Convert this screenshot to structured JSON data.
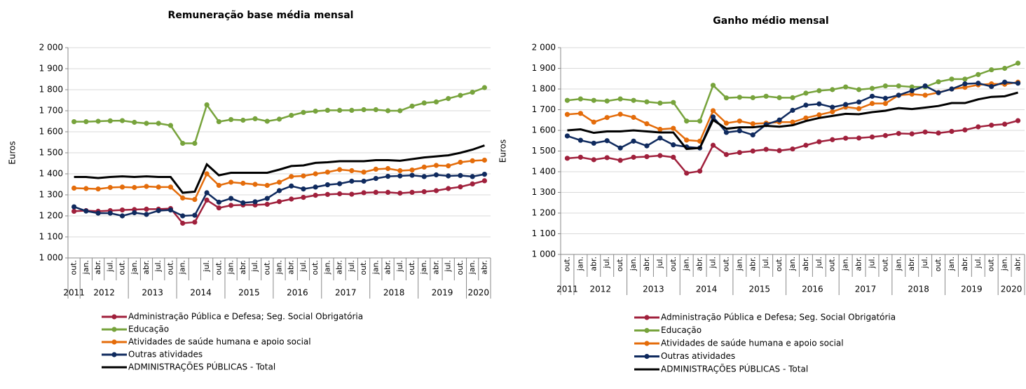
{
  "chart_data": [
    {
      "type": "line",
      "title": "Remuneração base média mensal",
      "y_label": "Euros",
      "categories": [
        "out.",
        "jan.",
        "abr.",
        "jul.",
        "out.",
        "jan.",
        "abr.",
        "jul.",
        "out.",
        "jan.",
        null,
        "jul.",
        "out.",
        "jan.",
        "abr.",
        "jul.",
        "out.",
        "jan.",
        "abr.",
        "jul.",
        "out.",
        "jan.",
        "abr.",
        "jul.",
        "out.",
        "jan.",
        "abr.",
        "jul.",
        "out.",
        "jan.",
        "abr.",
        "jul.",
        "out.",
        "jan.",
        "abr."
      ],
      "years": [
        "2011",
        "2012",
        "2013",
        "2014",
        "2015",
        "2016",
        "2017",
        "2018",
        "2019",
        "2020"
      ],
      "ylim": [
        1000,
        2000
      ],
      "yticks": [
        {
          "value": 1000,
          "label": "1 000"
        },
        {
          "value": 1100,
          "label": "1 100"
        },
        {
          "value": 1200,
          "label": "1 200"
        },
        {
          "value": 1300,
          "label": "1 300"
        },
        {
          "value": 1400,
          "label": "1 400"
        },
        {
          "value": 1500,
          "label": "1 500"
        },
        {
          "value": 1600,
          "label": "1 600"
        },
        {
          "value": 1700,
          "label": "1 700"
        },
        {
          "value": 1800,
          "label": "1 800"
        },
        {
          "value": 1900,
          "label": "1 900"
        },
        {
          "value": 2000,
          "label": "2 000"
        }
      ],
      "grid": true,
      "series": [
        {
          "name": "Administração Pública e Defesa; Seg. Social Obrigatória",
          "color": "#a0203c",
          "markers": true,
          "values": [
            1222,
            1225,
            1222,
            1225,
            1228,
            1230,
            1232,
            1232,
            1235,
            1165,
            1170,
            1275,
            1238,
            1250,
            1252,
            1252,
            1255,
            1268,
            1280,
            1288,
            1298,
            1302,
            1305,
            1303,
            1310,
            1312,
            1312,
            1308,
            1312,
            1315,
            1320,
            1330,
            1338,
            1352,
            1367
          ]
        },
        {
          "name": "Educação",
          "color": "#77a33c",
          "markers": true,
          "values": [
            1648,
            1648,
            1650,
            1652,
            1653,
            1645,
            1640,
            1640,
            1630,
            1545,
            1545,
            1728,
            1648,
            1658,
            1655,
            1662,
            1650,
            1660,
            1678,
            1692,
            1698,
            1702,
            1702,
            1702,
            1705,
            1705,
            1700,
            1700,
            1722,
            1737,
            1742,
            1758,
            1773,
            1788,
            1810
          ]
        },
        {
          "name": "Atividades de saúde humana e apoio social",
          "color": "#e46c0a",
          "markers": true,
          "values": [
            1332,
            1330,
            1328,
            1335,
            1337,
            1335,
            1340,
            1337,
            1337,
            1285,
            1278,
            1400,
            1345,
            1360,
            1355,
            1350,
            1345,
            1360,
            1387,
            1390,
            1400,
            1408,
            1420,
            1415,
            1408,
            1422,
            1425,
            1415,
            1418,
            1432,
            1440,
            1438,
            1455,
            1462,
            1465
          ]
        },
        {
          "name": "Outras atividades",
          "color": "#0f2a5e",
          "markers": true,
          "values": [
            1243,
            1223,
            1213,
            1213,
            1200,
            1215,
            1207,
            1225,
            1228,
            1200,
            1203,
            1310,
            1265,
            1283,
            1262,
            1267,
            1283,
            1320,
            1342,
            1328,
            1337,
            1348,
            1353,
            1365,
            1365,
            1378,
            1388,
            1390,
            1393,
            1387,
            1395,
            1390,
            1392,
            1387,
            1398
          ]
        },
        {
          "name": "ADMINISTRAÇÕES PÚBLICAS - Total",
          "color": "#000000",
          "markers": false,
          "values": [
            1385,
            1385,
            1380,
            1385,
            1388,
            1385,
            1388,
            1385,
            1385,
            1310,
            1315,
            1445,
            1393,
            1405,
            1405,
            1405,
            1405,
            1420,
            1437,
            1440,
            1452,
            1455,
            1460,
            1460,
            1460,
            1465,
            1465,
            1462,
            1470,
            1478,
            1483,
            1488,
            1500,
            1515,
            1535
          ]
        }
      ]
    },
    {
      "type": "line",
      "title": "Ganho médio mensal",
      "y_label": "Euros",
      "categories": [
        "out.",
        "jan.",
        "abr.",
        "jul.",
        "out.",
        "jan.",
        "abr.",
        "jul.",
        "out.",
        "jan.",
        "abr.",
        "jul.",
        "out.",
        "jan.",
        "abr.",
        "jul.",
        "out.",
        "jan.",
        "abr.",
        "jul.",
        "out.",
        "jan.",
        "abr.",
        "jul.",
        "out.",
        "jan.",
        "abr.",
        "jul.",
        "out.",
        "jan.",
        "abr.",
        "jul.",
        "out.",
        "jan.",
        "abr."
      ],
      "years": [
        "2011",
        "2012",
        "2013",
        "2014",
        "2015",
        "2016",
        "2017",
        "2018",
        "2019",
        "2020"
      ],
      "ylim": [
        1000,
        2000
      ],
      "yticks": [
        {
          "value": 1000,
          "label": "1 000"
        },
        {
          "value": 1100,
          "label": "1 100"
        },
        {
          "value": 1200,
          "label": "1 200"
        },
        {
          "value": 1300,
          "label": "1 300"
        },
        {
          "value": 1400,
          "label": "1 400"
        },
        {
          "value": 1500,
          "label": "1 500"
        },
        {
          "value": 1600,
          "label": "1 600"
        },
        {
          "value": 1700,
          "label": "1 700"
        },
        {
          "value": 1800,
          "label": "1 800"
        },
        {
          "value": 1900,
          "label": "1 900"
        },
        {
          "value": 2000,
          "label": "2 000"
        }
      ],
      "grid": true,
      "series": [
        {
          "name": "Administração Pública e Defesa; Seg. Social Obrigatória",
          "color": "#a0203c",
          "markers": true,
          "values": [
            1465,
            1470,
            1458,
            1468,
            1455,
            1470,
            1473,
            1478,
            1470,
            1393,
            1403,
            1528,
            1483,
            1493,
            1500,
            1508,
            1502,
            1510,
            1528,
            1545,
            1555,
            1562,
            1563,
            1568,
            1575,
            1585,
            1583,
            1592,
            1587,
            1595,
            1602,
            1617,
            1625,
            1630,
            1647
          ]
        },
        {
          "name": "Educação",
          "color": "#77a33c",
          "markers": true,
          "values": [
            1745,
            1752,
            1745,
            1742,
            1752,
            1745,
            1738,
            1732,
            1735,
            1645,
            1645,
            1818,
            1757,
            1760,
            1758,
            1765,
            1758,
            1758,
            1780,
            1792,
            1797,
            1810,
            1797,
            1803,
            1815,
            1815,
            1810,
            1810,
            1835,
            1848,
            1848,
            1870,
            1893,
            1900,
            1925
          ]
        },
        {
          "name": "Atividades de saúde humana e apoio social",
          "color": "#e46c0a",
          "markers": true,
          "values": [
            1677,
            1682,
            1640,
            1662,
            1678,
            1663,
            1632,
            1605,
            1610,
            1553,
            1548,
            1695,
            1635,
            1645,
            1632,
            1635,
            1640,
            1640,
            1660,
            1675,
            1690,
            1713,
            1705,
            1730,
            1730,
            1770,
            1775,
            1770,
            1783,
            1800,
            1808,
            1820,
            1825,
            1823,
            1833
          ]
        },
        {
          "name": "Outras atividades",
          "color": "#0f2a5e",
          "markers": true,
          "values": [
            1573,
            1552,
            1538,
            1550,
            1515,
            1548,
            1525,
            1563,
            1530,
            1520,
            1515,
            1665,
            1590,
            1598,
            1578,
            1628,
            1650,
            1697,
            1722,
            1728,
            1712,
            1725,
            1737,
            1765,
            1755,
            1770,
            1792,
            1815,
            1782,
            1800,
            1825,
            1828,
            1812,
            1833,
            1828
          ]
        },
        {
          "name": "ADMINISTRAÇÕES PÚBLICAS - Total",
          "color": "#000000",
          "markers": false,
          "values": [
            1600,
            1605,
            1588,
            1595,
            1595,
            1600,
            1595,
            1590,
            1590,
            1510,
            1515,
            1650,
            1608,
            1615,
            1615,
            1622,
            1618,
            1625,
            1645,
            1660,
            1670,
            1680,
            1678,
            1688,
            1695,
            1708,
            1703,
            1710,
            1718,
            1732,
            1732,
            1750,
            1762,
            1765,
            1783
          ]
        }
      ]
    }
  ]
}
